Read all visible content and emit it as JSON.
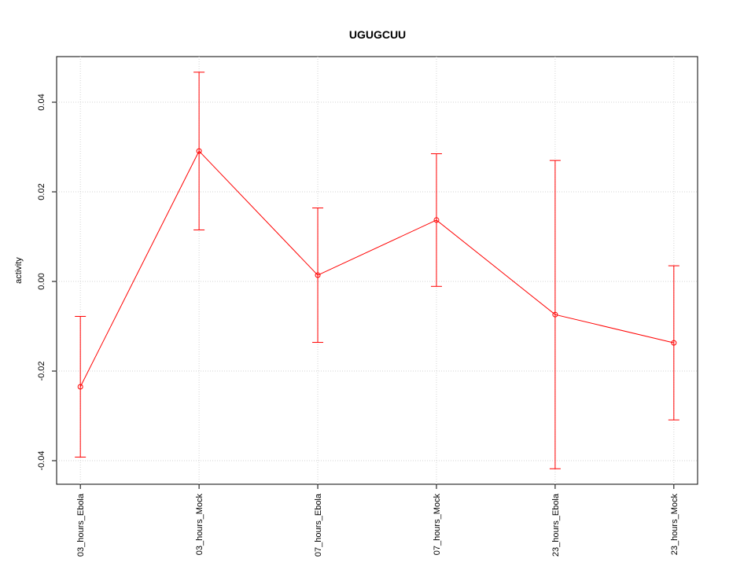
{
  "chart_data": {
    "type": "line",
    "title": "UGUGCUU",
    "y_label": "activity",
    "categories": [
      "03_hours_Ebola",
      "03_hours_Mock",
      "07_hours_Ebola",
      "07_hours_Mock",
      "23_hours_Ebola",
      "23_hours_Mock"
    ],
    "series": [
      {
        "color": "#ff0000",
        "values": [
          -0.0235,
          0.0291,
          0.0014,
          0.0137,
          -0.0074,
          -0.0137
        ],
        "errors": [
          0.0157,
          0.0176,
          0.015,
          0.0148,
          0.0344,
          0.0172
        ]
      }
    ],
    "ylim": [
      -0.04526,
      0.05018
    ],
    "yticks": [
      -0.04,
      -0.02,
      {
        "value": 0,
        "label": "0.00"
      },
      0.02,
      0.04
    ],
    "grid": true
  }
}
